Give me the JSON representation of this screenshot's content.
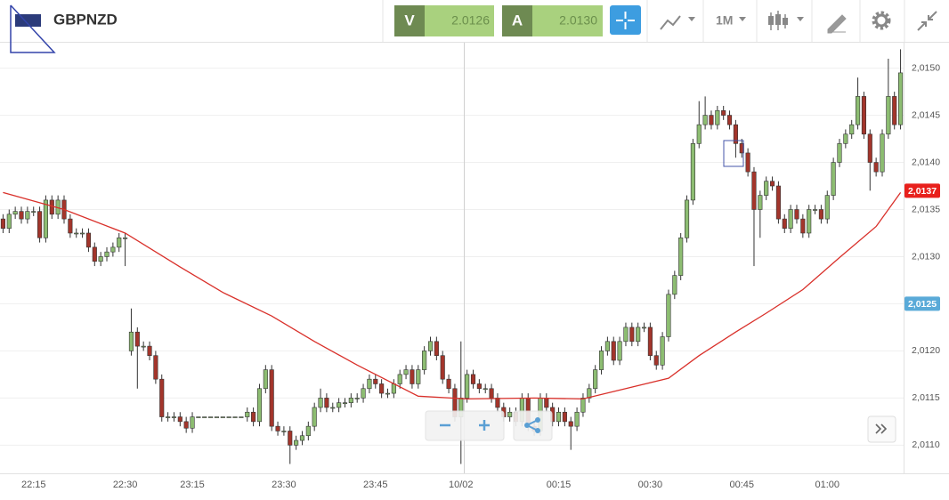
{
  "toolbar": {
    "symbol": "GBPNZD",
    "bid": {
      "label": "V",
      "price": "2.0126"
    },
    "ask": {
      "label": "A",
      "price": "2.0130"
    },
    "interval": "1M"
  },
  "chart_data": {
    "type": "candlestick",
    "categories": [
      null,
      null,
      null,
      null,
      null,
      "22:15",
      null,
      null,
      null,
      null,
      null,
      null,
      null,
      null,
      null,
      null,
      null,
      null,
      null,
      null,
      "22:30",
      null,
      null,
      null,
      null,
      null,
      null,
      null,
      null,
      null,
      null,
      "23:15",
      null,
      null,
      null,
      null,
      null,
      null,
      null,
      null,
      null,
      null,
      null,
      null,
      null,
      null,
      "23:30",
      null,
      null,
      null,
      null,
      null,
      null,
      null,
      null,
      null,
      null,
      null,
      null,
      null,
      null,
      "23:45",
      null,
      null,
      null,
      null,
      null,
      null,
      null,
      null,
      null,
      null,
      null,
      null,
      null,
      "10/02",
      null,
      null,
      null,
      null,
      null,
      null,
      null,
      null,
      null,
      null,
      null,
      null,
      null,
      null,
      null,
      "00:15",
      null,
      null,
      null,
      null,
      null,
      null,
      null,
      null,
      null,
      null,
      null,
      null,
      null,
      null,
      "00:30",
      null,
      null,
      null,
      null,
      null,
      null,
      null,
      null,
      null,
      null,
      null,
      null,
      null,
      null,
      "00:45",
      null,
      null,
      null,
      null,
      null,
      null,
      null,
      null,
      null,
      null,
      null,
      null,
      null,
      "01:00",
      null,
      null,
      null,
      null,
      null,
      null,
      null,
      null,
      null,
      null,
      null,
      null
    ],
    "open": [
      2.0134,
      2.0133,
      2.01345,
      2.01348,
      2.0134,
      2.01348,
      2.01348,
      2.0132,
      2.0136,
      2.01345,
      2.0136,
      2.0134,
      2.01325,
      2.01325,
      2.01325,
      2.0131,
      2.01295,
      2.013,
      2.01305,
      2.0131,
      2.0132,
      2.012,
      2.0122,
      2.01205,
      2.01205,
      2.01195,
      2.0117,
      2.0113,
      2.0113,
      2.0113,
      2.01125,
      2.01118,
      2.0113,
      2.0113,
      2.0113,
      2.0113,
      2.0113,
      2.0113,
      2.0113,
      2.0113,
      2.0113,
      2.01135,
      2.01125,
      2.0116,
      2.0118,
      2.0112,
      2.01115,
      2.01115,
      2.011,
      2.01105,
      2.0111,
      2.0112,
      2.0114,
      2.0115,
      2.0114,
      2.0114,
      2.01145,
      2.01145,
      2.0115,
      2.0115,
      2.0116,
      2.0117,
      2.01165,
      2.01155,
      2.01155,
      2.01165,
      2.01175,
      2.0118,
      2.01165,
      2.0118,
      2.012,
      2.0121,
      2.01195,
      2.0117,
      2.0116,
      2.0113,
      2.0115,
      2.01175,
      2.01165,
      2.0116,
      2.0116,
      2.0115,
      2.0114,
      2.0113,
      2.01135,
      2.01125,
      2.0115,
      2.0112,
      2.01115,
      2.0115,
      2.0114,
      2.01125,
      2.01135,
      2.01125,
      2.0112,
      2.01135,
      2.0115,
      2.0116,
      2.0118,
      2.012,
      2.0121,
      2.0119,
      2.0121,
      2.01225,
      2.0121,
      2.01225,
      2.01225,
      2.01195,
      2.01185,
      2.01215,
      2.0126,
      2.0128,
      2.0132,
      2.0136,
      2.0142,
      2.0144,
      2.0145,
      2.0144,
      2.01455,
      2.0145,
      2.0144,
      2.0142,
      2.0141,
      2.0139,
      2.0135,
      2.01365,
      2.0138,
      2.01375,
      2.0134,
      2.0133,
      2.0135,
      2.0134,
      2.01325,
      2.0135,
      2.0135,
      2.0134,
      2.01365,
      2.014,
      2.0142,
      2.0143,
      2.0144,
      2.0147,
      2.0143,
      2.014,
      2.0139,
      2.0143,
      2.0147,
      2.0144
    ],
    "high": [
      2.01345,
      2.0135,
      2.01353,
      2.01353,
      2.01353,
      2.01353,
      2.01353,
      2.01365,
      2.01365,
      2.01365,
      2.01365,
      2.01345,
      2.0133,
      2.0133,
      2.0133,
      2.01315,
      2.01305,
      2.0131,
      2.01315,
      2.01325,
      2.01325,
      2.01245,
      2.01225,
      2.0121,
      2.0121,
      2.012,
      2.01175,
      2.01135,
      2.01135,
      2.01135,
      2.0113,
      2.01135,
      2.0113,
      2.0113,
      2.0113,
      2.0113,
      2.0113,
      2.0113,
      2.0113,
      2.0113,
      2.0114,
      2.0114,
      2.01165,
      2.01185,
      2.01185,
      2.01125,
      2.0112,
      2.0112,
      2.0111,
      2.01115,
      2.01125,
      2.01145,
      2.0116,
      2.01155,
      2.01145,
      2.0115,
      2.0115,
      2.01155,
      2.01155,
      2.01165,
      2.01175,
      2.01175,
      2.0117,
      2.0116,
      2.0117,
      2.0118,
      2.01185,
      2.01185,
      2.01185,
      2.01205,
      2.01215,
      2.01215,
      2.012,
      2.01175,
      2.01165,
      2.0121,
      2.0118,
      2.0118,
      2.0117,
      2.01165,
      2.01165,
      2.01155,
      2.01145,
      2.0114,
      2.0114,
      2.01155,
      2.01155,
      2.01125,
      2.01155,
      2.01155,
      2.01145,
      2.0114,
      2.0114,
      2.0113,
      2.0114,
      2.01155,
      2.01165,
      2.01185,
      2.01205,
      2.01215,
      2.01215,
      2.01215,
      2.0123,
      2.0123,
      2.0123,
      2.0123,
      2.0123,
      2.012,
      2.0122,
      2.01265,
      2.01285,
      2.01325,
      2.01365,
      2.01425,
      2.01465,
      2.0147,
      2.01455,
      2.0146,
      2.0146,
      2.01455,
      2.01445,
      2.01425,
      2.01415,
      2.01395,
      2.0137,
      2.01385,
      2.01385,
      2.0138,
      2.01345,
      2.01355,
      2.01355,
      2.01345,
      2.01355,
      2.01355,
      2.01355,
      2.0137,
      2.01405,
      2.01425,
      2.01435,
      2.01445,
      2.0149,
      2.01475,
      2.01435,
      2.01405,
      2.01435,
      2.0151,
      2.01475,
      2.0152
    ],
    "low": [
      2.01325,
      2.01325,
      2.0134,
      2.01335,
      2.01335,
      2.01343,
      2.01315,
      2.01315,
      2.0134,
      2.0134,
      2.01335,
      2.0132,
      2.0132,
      2.0132,
      2.01305,
      2.0129,
      2.0129,
      2.01295,
      2.013,
      2.01305,
      2.0129,
      2.01195,
      2.0116,
      2.012,
      2.0119,
      2.01165,
      2.01125,
      2.01125,
      2.01125,
      2.0112,
      2.01113,
      2.01113,
      2.0113,
      2.0113,
      2.0113,
      2.0113,
      2.0113,
      2.0113,
      2.0113,
      2.0113,
      2.01125,
      2.0112,
      2.0112,
      2.01155,
      2.01115,
      2.0111,
      2.0111,
      2.0108,
      2.01095,
      2.011,
      2.01105,
      2.01115,
      2.01135,
      2.01135,
      2.01135,
      2.01135,
      2.0114,
      2.0114,
      2.01145,
      2.01145,
      2.01155,
      2.0116,
      2.0115,
      2.0115,
      2.0115,
      2.0116,
      2.0117,
      2.0116,
      2.0116,
      2.01175,
      2.01195,
      2.0119,
      2.01165,
      2.01155,
      2.01125,
      2.0108,
      2.01145,
      2.0116,
      2.01155,
      2.01155,
      2.01145,
      2.01135,
      2.01125,
      2.01125,
      2.0112,
      2.0112,
      2.01115,
      2.0111,
      2.0111,
      2.01135,
      2.0112,
      2.0112,
      2.0112,
      2.01095,
      2.01115,
      2.0113,
      2.01145,
      2.01155,
      2.01175,
      2.01195,
      2.01185,
      2.01185,
      2.01205,
      2.01205,
      2.01205,
      2.0122,
      2.0119,
      2.0118,
      2.0118,
      2.0121,
      2.01255,
      2.01275,
      2.01315,
      2.01355,
      2.01415,
      2.01435,
      2.01435,
      2.01435,
      2.01445,
      2.01435,
      2.01405,
      2.01405,
      2.01385,
      2.0129,
      2.0132,
      2.0136,
      2.0137,
      2.01335,
      2.01325,
      2.01325,
      2.01335,
      2.0132,
      2.0132,
      2.01345,
      2.01335,
      2.01335,
      2.0136,
      2.01395,
      2.01415,
      2.01425,
      2.01435,
      2.01425,
      2.0137,
      2.01385,
      2.01385,
      2.01425,
      2.01435,
      2.01435
    ],
    "close": [
      2.0133,
      2.01345,
      2.01348,
      2.0134,
      2.01348,
      2.01348,
      2.0132,
      2.0136,
      2.01345,
      2.0136,
      2.0134,
      2.01325,
      2.01325,
      2.01325,
      2.0131,
      2.01295,
      2.013,
      2.01305,
      2.0131,
      2.0132,
      2.0132,
      2.0122,
      2.01205,
      2.01205,
      2.01195,
      2.0117,
      2.0113,
      2.0113,
      2.0113,
      2.01125,
      2.01118,
      2.0113,
      2.0113,
      2.0113,
      2.0113,
      2.0113,
      2.0113,
      2.0113,
      2.0113,
      2.0113,
      2.01135,
      2.01125,
      2.0116,
      2.0118,
      2.0112,
      2.01115,
      2.01115,
      2.011,
      2.01105,
      2.0111,
      2.0112,
      2.0114,
      2.0115,
      2.0114,
      2.0114,
      2.01145,
      2.01145,
      2.0115,
      2.0115,
      2.0116,
      2.0117,
      2.01165,
      2.01155,
      2.01155,
      2.01165,
      2.01175,
      2.0118,
      2.01165,
      2.0118,
      2.012,
      2.0121,
      2.01195,
      2.0117,
      2.0116,
      2.0113,
      2.0115,
      2.01175,
      2.01165,
      2.0116,
      2.0116,
      2.0115,
      2.0114,
      2.0113,
      2.01135,
      2.01125,
      2.0115,
      2.0112,
      2.01115,
      2.0115,
      2.0114,
      2.01125,
      2.01135,
      2.01125,
      2.0112,
      2.01135,
      2.0115,
      2.0116,
      2.0118,
      2.012,
      2.0121,
      2.0119,
      2.0121,
      2.01225,
      2.0121,
      2.01225,
      2.01225,
      2.01195,
      2.01185,
      2.01215,
      2.0126,
      2.0128,
      2.0132,
      2.0136,
      2.0142,
      2.0144,
      2.0145,
      2.0144,
      2.01455,
      2.0145,
      2.0144,
      2.0142,
      2.0141,
      2.0139,
      2.0135,
      2.01365,
      2.0138,
      2.01375,
      2.0134,
      2.0133,
      2.0135,
      2.0134,
      2.01325,
      2.0135,
      2.0135,
      2.0134,
      2.01365,
      2.014,
      2.0142,
      2.0143,
      2.0144,
      2.0147,
      2.0143,
      2.014,
      2.0139,
      2.0143,
      2.0147,
      2.0144,
      2.01495
    ],
    "up_color": "#8dbd72",
    "down_color": "#a3352b",
    "moving_average": {
      "color": "#d9302a",
      "x": [
        0,
        10,
        20,
        29,
        36,
        44,
        51,
        58,
        68,
        76,
        87,
        95,
        102,
        109,
        114,
        120,
        125,
        131,
        137,
        143,
        147
      ],
      "values": [
        2.01368,
        2.0135,
        2.01325,
        2.01289,
        2.01262,
        2.01237,
        2.0121,
        2.01185,
        2.01152,
        2.01149,
        2.0115,
        2.01149,
        2.0116,
        2.01171,
        2.01195,
        2.0122,
        2.0124,
        2.01265,
        2.01299,
        2.01332,
        2.01368
      ]
    },
    "markers": [
      {
        "value": 2.0137,
        "label": "2,0137",
        "color": "#e8201c"
      },
      {
        "value": 2.0125,
        "label": "2,0125",
        "color": "#5aaad8"
      }
    ],
    "ylim": [
      2.01072,
      2.01527
    ],
    "yticks": [
      {
        "value": 2.011,
        "label": "2,0110"
      },
      {
        "value": 2.0115,
        "label": "2,0115"
      },
      {
        "value": 2.012,
        "label": "2,0120"
      },
      {
        "value": 2.0125,
        "label": "2,0125"
      },
      {
        "value": 2.013,
        "label": "2,0130"
      },
      {
        "value": 2.0135,
        "label": "2,0135"
      },
      {
        "value": 2.014,
        "label": "2,0140"
      },
      {
        "value": 2.0145,
        "label": "2,0145"
      },
      {
        "value": 2.015,
        "label": "2,0150"
      }
    ],
    "grid": true
  }
}
